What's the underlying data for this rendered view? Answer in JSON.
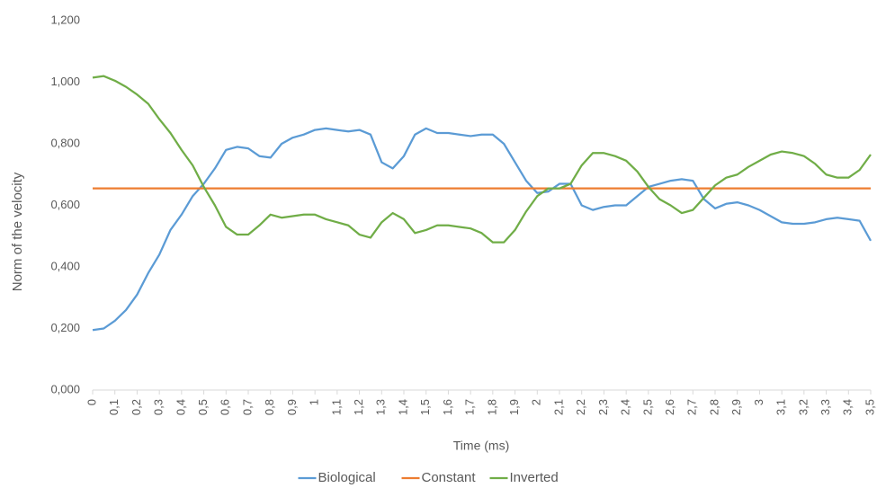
{
  "chart_data": {
    "type": "line",
    "x_label": "Time (ms)",
    "y_label": "Norm of the velocity",
    "x": [
      0,
      0.05,
      0.1,
      0.15,
      0.2,
      0.25,
      0.3,
      0.35,
      0.4,
      0.45,
      0.5,
      0.55,
      0.6,
      0.65,
      0.7,
      0.75,
      0.8,
      0.85,
      0.9,
      0.95,
      1,
      1.05,
      1.1,
      1.15,
      1.2,
      1.25,
      1.3,
      1.35,
      1.4,
      1.45,
      1.5,
      1.55,
      1.6,
      1.65,
      1.7,
      1.75,
      1.8,
      1.85,
      1.9,
      1.95,
      2,
      2.05,
      2.1,
      2.15,
      2.2,
      2.25,
      2.3,
      2.35,
      2.4,
      2.45,
      2.5,
      2.55,
      2.6,
      2.65,
      2.7,
      2.75,
      2.8,
      2.85,
      2.9,
      2.95,
      3,
      3.05,
      3.1,
      3.15,
      3.2,
      3.25,
      3.3,
      3.35,
      3.4,
      3.45,
      3.5
    ],
    "series": [
      {
        "name": "Biological",
        "color": "#5b9bd5",
        "values": [
          0.195,
          0.2,
          0.225,
          0.26,
          0.31,
          0.38,
          0.44,
          0.52,
          0.57,
          0.63,
          0.67,
          0.72,
          0.78,
          0.79,
          0.785,
          0.76,
          0.755,
          0.8,
          0.82,
          0.83,
          0.845,
          0.85,
          0.845,
          0.84,
          0.845,
          0.83,
          0.74,
          0.72,
          0.76,
          0.83,
          0.85,
          0.835,
          0.835,
          0.83,
          0.825,
          0.83,
          0.83,
          0.8,
          0.74,
          0.68,
          0.64,
          0.645,
          0.67,
          0.67,
          0.6,
          0.585,
          0.595,
          0.6,
          0.6,
          0.63,
          0.66,
          0.67,
          0.68,
          0.685,
          0.68,
          0.62,
          0.59,
          0.605,
          0.61,
          0.6,
          0.585,
          0.565,
          0.545,
          0.54,
          0.54,
          0.545,
          0.555,
          0.56,
          0.555,
          0.55,
          0.485
        ]
      },
      {
        "name": "Constant",
        "color": "#ed7d31",
        "values": [
          0.655,
          0.655,
          0.655,
          0.655,
          0.655,
          0.655,
          0.655,
          0.655,
          0.655,
          0.655,
          0.655,
          0.655,
          0.655,
          0.655,
          0.655,
          0.655,
          0.655,
          0.655,
          0.655,
          0.655,
          0.655,
          0.655,
          0.655,
          0.655,
          0.655,
          0.655,
          0.655,
          0.655,
          0.655,
          0.655,
          0.655,
          0.655,
          0.655,
          0.655,
          0.655,
          0.655,
          0.655,
          0.655,
          0.655,
          0.655,
          0.655,
          0.655,
          0.655,
          0.655,
          0.655,
          0.655,
          0.655,
          0.655,
          0.655,
          0.655,
          0.655,
          0.655,
          0.655,
          0.655,
          0.655,
          0.655,
          0.655,
          0.655,
          0.655,
          0.655,
          0.655,
          0.655,
          0.655,
          0.655,
          0.655,
          0.655,
          0.655,
          0.655,
          0.655,
          0.655,
          0.655
        ]
      },
      {
        "name": "Inverted",
        "color": "#70ad47",
        "values": [
          1.015,
          1.02,
          1.005,
          0.985,
          0.96,
          0.93,
          0.88,
          0.835,
          0.78,
          0.73,
          0.66,
          0.6,
          0.53,
          0.505,
          0.505,
          0.535,
          0.57,
          0.56,
          0.565,
          0.57,
          0.57,
          0.555,
          0.545,
          0.535,
          0.505,
          0.495,
          0.545,
          0.575,
          0.555,
          0.51,
          0.52,
          0.535,
          0.535,
          0.53,
          0.525,
          0.51,
          0.48,
          0.48,
          0.52,
          0.58,
          0.63,
          0.655,
          0.655,
          0.67,
          0.73,
          0.77,
          0.77,
          0.76,
          0.745,
          0.71,
          0.66,
          0.62,
          0.6,
          0.575,
          0.585,
          0.625,
          0.665,
          0.69,
          0.7,
          0.725,
          0.745,
          0.765,
          0.775,
          0.77,
          0.76,
          0.735,
          0.7,
          0.69,
          0.69,
          0.715,
          0.765
        ]
      }
    ],
    "xlim": [
      0,
      3.5
    ],
    "xticks": [
      0,
      {
        "value": 0.1,
        "label": "0,1"
      },
      {
        "value": 0.2,
        "label": "0,2"
      },
      {
        "value": 0.3,
        "label": "0,3"
      },
      {
        "value": 0.4,
        "label": "0,4"
      },
      {
        "value": 0.5,
        "label": "0,5"
      },
      {
        "value": 0.6,
        "label": "0,6"
      },
      {
        "value": 0.7,
        "label": "0,7"
      },
      {
        "value": 0.8,
        "label": "0,8"
      },
      {
        "value": 0.9,
        "label": "0,9"
      },
      1,
      {
        "value": 1.1,
        "label": "1,1"
      },
      {
        "value": 1.2,
        "label": "1,2"
      },
      {
        "value": 1.3,
        "label": "1,3"
      },
      {
        "value": 1.4,
        "label": "1,4"
      },
      {
        "value": 1.5,
        "label": "1,5"
      },
      {
        "value": 1.6,
        "label": "1,6"
      },
      {
        "value": 1.7,
        "label": "1,7"
      },
      {
        "value": 1.8,
        "label": "1,8"
      },
      {
        "value": 1.9,
        "label": "1,9"
      },
      2,
      {
        "value": 2.1,
        "label": "2,1"
      },
      {
        "value": 2.2,
        "label": "2,2"
      },
      {
        "value": 2.3,
        "label": "2,3"
      },
      {
        "value": 2.4,
        "label": "2,4"
      },
      {
        "value": 2.5,
        "label": "2,5"
      },
      {
        "value": 2.6,
        "label": "2,6"
      },
      {
        "value": 2.7,
        "label": "2,7"
      },
      {
        "value": 2.8,
        "label": "2,8"
      },
      {
        "value": 2.9,
        "label": "2,9"
      },
      3,
      {
        "value": 3.1,
        "label": "3,1"
      },
      {
        "value": 3.2,
        "label": "3,2"
      },
      {
        "value": 3.3,
        "label": "3,3"
      },
      {
        "value": 3.4,
        "label": "3,4"
      },
      {
        "value": 3.5,
        "label": "3,5"
      }
    ],
    "ylim": [
      0,
      1.2
    ],
    "yticks": [
      {
        "value": 0,
        "label": "0,000"
      },
      {
        "value": 0.2,
        "label": "0,200"
      },
      {
        "value": 0.4,
        "label": "0,400"
      },
      {
        "value": 0.6,
        "label": "0,600"
      },
      {
        "value": 0.8,
        "label": "0,800"
      },
      {
        "value": 1,
        "label": "1,000"
      },
      {
        "value": 1.2,
        "label": "1,200"
      }
    ],
    "grid": false,
    "legend": "bottom"
  }
}
